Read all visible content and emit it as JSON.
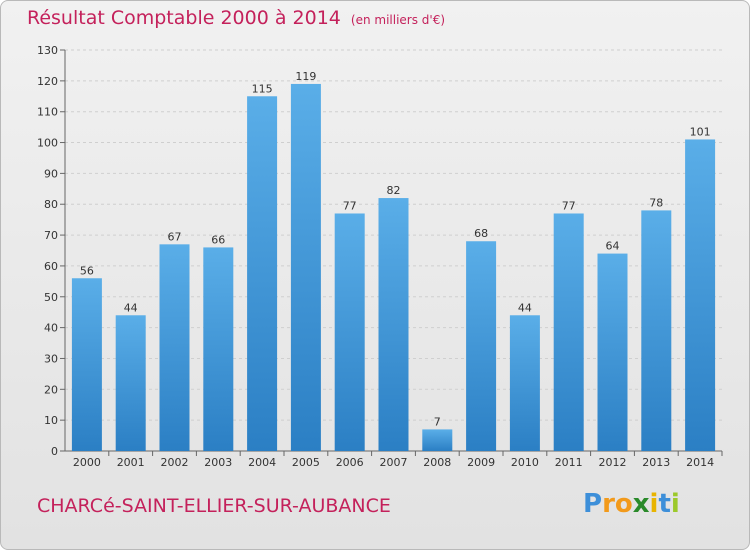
{
  "title": "Résultat Comptable 2000 à 2014",
  "unit": "(en milliers d'€)",
  "commune": "CHARCé-SAINT-ELLIER-SUR-AUBANCE",
  "logo": {
    "letters": [
      "P",
      "r",
      "o",
      "x",
      "i",
      "t",
      "i"
    ],
    "colors": [
      "#3d8fd9",
      "#f29a1b",
      "#f29a1b",
      "#2a8a2a",
      "#e8b400",
      "#3d8fd9",
      "#9cc92b"
    ]
  },
  "colors": {
    "bar": "#4f9fde",
    "title": "#c4215b"
  },
  "chart_data": {
    "type": "bar",
    "title": "Résultat Comptable 2000 à 2014",
    "xlabel": "",
    "ylabel": "",
    "categories": [
      "2000",
      "2001",
      "2002",
      "2003",
      "2004",
      "2005",
      "2006",
      "2007",
      "2008",
      "2009",
      "2010",
      "2011",
      "2012",
      "2013",
      "2014"
    ],
    "values": [
      56,
      44,
      67,
      66,
      115,
      119,
      77,
      82,
      7,
      68,
      44,
      77,
      64,
      78,
      101
    ],
    "ylim": [
      0,
      130
    ],
    "yticks": [
      0,
      10,
      20,
      30,
      40,
      50,
      60,
      70,
      80,
      90,
      100,
      110,
      120,
      130
    ],
    "grid": true
  }
}
